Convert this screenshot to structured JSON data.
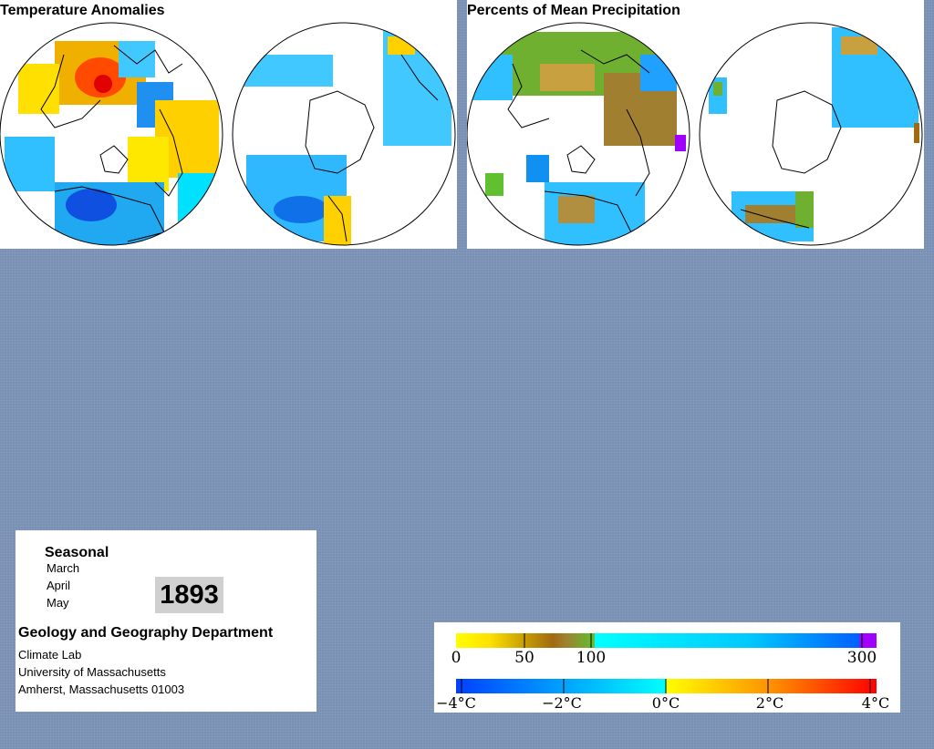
{
  "temperature_panel": {
    "title": "Temperature Anomalies"
  },
  "precipitation_panel": {
    "title": "Percents of Mean Precipitation"
  },
  "info": {
    "season_label": "Seasonal",
    "months": [
      "March",
      "April",
      "May"
    ],
    "year": "1893",
    "department": "Geology and Geography Department",
    "address_lines": [
      "Climate Lab",
      "University of Massachusetts",
      "Amherst, Massachusetts 01003"
    ]
  },
  "legend": {
    "precipitation": {
      "tick_labels": [
        "0",
        "50",
        "100",
        "300"
      ],
      "colors": [
        "#ffff00",
        "#c8a000",
        "#a06a10",
        "#60c030",
        "#00ffff",
        "#00a0ff",
        "#0060ff",
        "#a000ff"
      ]
    },
    "temperature": {
      "tick_labels": [
        "−4°C",
        "−2°C",
        "0°C",
        "2°C",
        "4°C"
      ],
      "colors": [
        "#0040ff",
        "#00a0ff",
        "#00ffff",
        "#ffff00",
        "#ff9000",
        "#ff0000"
      ]
    }
  }
}
